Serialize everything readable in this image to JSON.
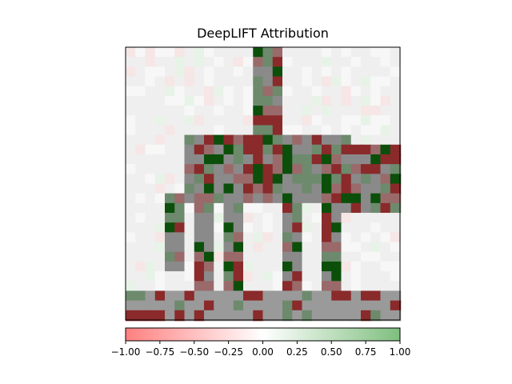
{
  "figure": {
    "title": "DeepLIFT Attribution"
  },
  "chart_data": {
    "type": "heatmap",
    "title": "DeepLIFT Attribution",
    "xlabel": "",
    "ylabel": "",
    "axes_ticks_visible": false,
    "grid": false,
    "image_grid_size": [
      28,
      28
    ],
    "image_description_visible": "grayscale image of a horse with a rider, overlaid with red/green attribution cells",
    "colorbar": {
      "orientation": "horizontal",
      "placement": "below",
      "vmin": -1.0,
      "vmax": 1.0,
      "ticks": [
        -1.0,
        -0.75,
        -0.5,
        -0.25,
        0.0,
        0.25,
        0.5,
        0.75,
        1.0
      ],
      "tick_labels": [
        "−1.00",
        "−0.75",
        "−0.50",
        "−0.25",
        "0.00",
        "0.25",
        "0.50",
        "0.75",
        "1.00"
      ],
      "colormap": {
        "negative": "#ff8080",
        "zero": "#ffffff",
        "positive": "#7fbf7f"
      }
    },
    "overlay_colors": {
      "strong_positive": "#0b4f0b",
      "strong_negative": "#8a2a2a",
      "neutral_gray": "#8a8a8a",
      "background": "#f2f2f2"
    }
  }
}
